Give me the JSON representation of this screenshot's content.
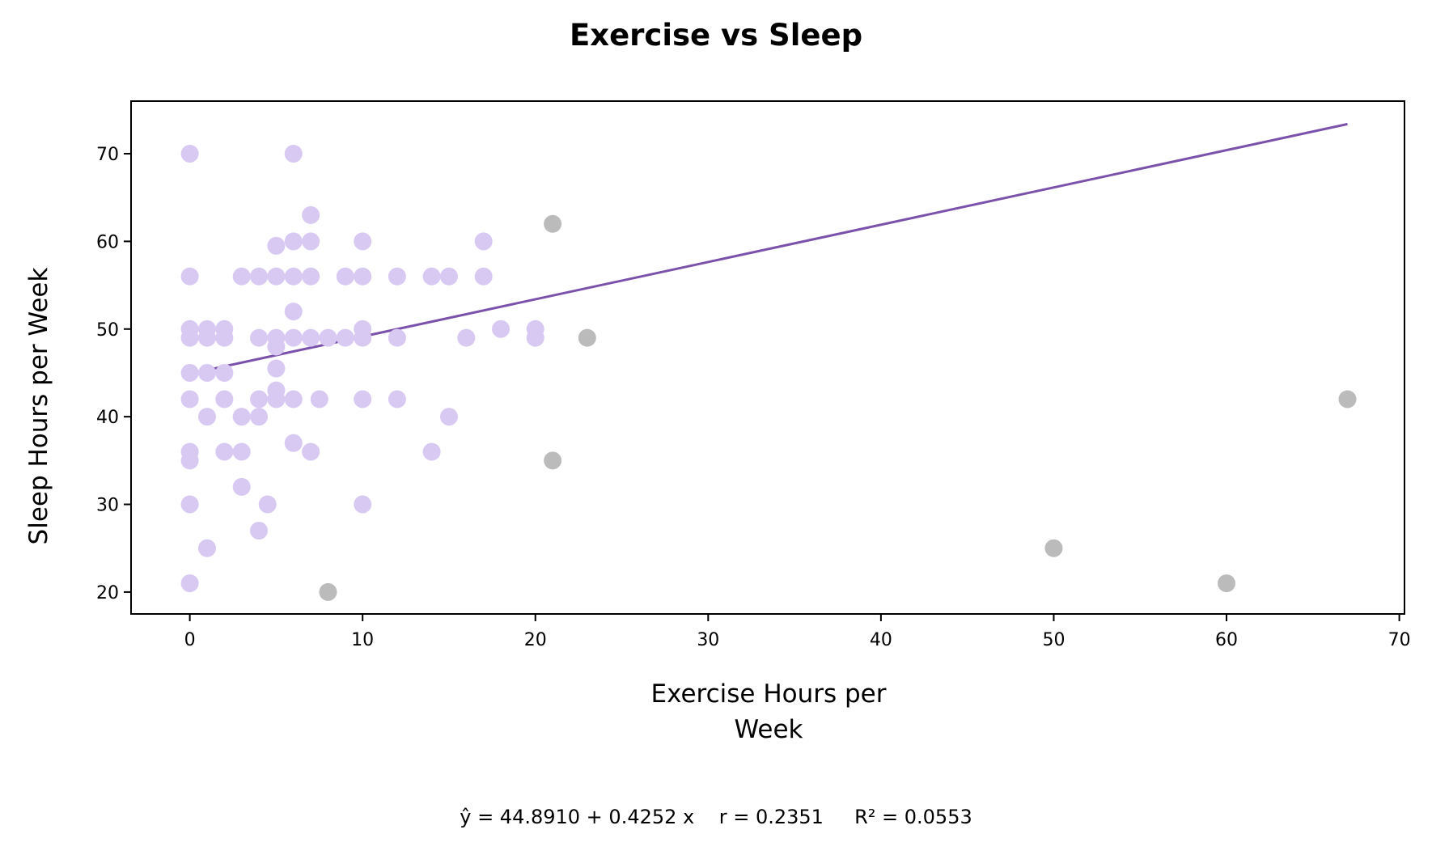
{
  "chart_data": {
    "type": "scatter",
    "title": "Exercise vs Sleep",
    "xlabel": "Exercise Hours per\nWeek",
    "ylabel": "Sleep Hours per Week",
    "xlim": [
      -3.4,
      70.3
    ],
    "ylim": [
      17.5,
      76.0
    ],
    "xticks": [
      0,
      10,
      20,
      30,
      40,
      50,
      60,
      70
    ],
    "yticks": [
      20,
      30,
      40,
      50,
      60,
      70
    ],
    "grid": false,
    "series": [
      {
        "role": "points",
        "color": "#d8c9f2",
        "points": [
          [
            0,
            70
          ],
          [
            0,
            56
          ],
          [
            0,
            50
          ],
          [
            0,
            49
          ],
          [
            0,
            45
          ],
          [
            0,
            42
          ],
          [
            0,
            36
          ],
          [
            0,
            35
          ],
          [
            0,
            30
          ],
          [
            0,
            21
          ],
          [
            1,
            50
          ],
          [
            1,
            49
          ],
          [
            1,
            45
          ],
          [
            1,
            40
          ],
          [
            1,
            25
          ],
          [
            2,
            50
          ],
          [
            2,
            49
          ],
          [
            2,
            45
          ],
          [
            2,
            42
          ],
          [
            2,
            36
          ],
          [
            3,
            56
          ],
          [
            3,
            40
          ],
          [
            3,
            36
          ],
          [
            3,
            32
          ],
          [
            4,
            56
          ],
          [
            4,
            49
          ],
          [
            4,
            42
          ],
          [
            4,
            40
          ],
          [
            4,
            27
          ],
          [
            4.5,
            30
          ],
          [
            5,
            59.5
          ],
          [
            5,
            56
          ],
          [
            5,
            49
          ],
          [
            5,
            48
          ],
          [
            5,
            45.5
          ],
          [
            5,
            43
          ],
          [
            5,
            42
          ],
          [
            6,
            70
          ],
          [
            6,
            60
          ],
          [
            6,
            56
          ],
          [
            6,
            52
          ],
          [
            6,
            49
          ],
          [
            6,
            42
          ],
          [
            6,
            37
          ],
          [
            7,
            63
          ],
          [
            7,
            60
          ],
          [
            7,
            56
          ],
          [
            7,
            49
          ],
          [
            7,
            36
          ],
          [
            7.5,
            42
          ],
          [
            8,
            49
          ],
          [
            9,
            56
          ],
          [
            9,
            49
          ],
          [
            10,
            60
          ],
          [
            10,
            56
          ],
          [
            10,
            50
          ],
          [
            10,
            49
          ],
          [
            10,
            42
          ],
          [
            10,
            30
          ],
          [
            12,
            56
          ],
          [
            12,
            49
          ],
          [
            12,
            42
          ],
          [
            14,
            56
          ],
          [
            14,
            36
          ],
          [
            15,
            56
          ],
          [
            15,
            40
          ],
          [
            16,
            49
          ],
          [
            17,
            60
          ],
          [
            17,
            56
          ],
          [
            18,
            50
          ],
          [
            20,
            50
          ],
          [
            20,
            49
          ]
        ]
      },
      {
        "role": "outliers",
        "color": "#bbbbbb",
        "points": [
          [
            8,
            20
          ],
          [
            21,
            62
          ],
          [
            21,
            35
          ],
          [
            23,
            49
          ],
          [
            50,
            25
          ],
          [
            60,
            21
          ],
          [
            67,
            42
          ]
        ]
      },
      {
        "role": "fit-line",
        "color": "#7b52ab",
        "line": [
          [
            0,
            44.891
          ],
          [
            67,
            73.38
          ]
        ]
      }
    ],
    "annotation": "ŷ = 44.8910 + 0.4252 x    r = 0.2351     R² = 0.0553"
  }
}
